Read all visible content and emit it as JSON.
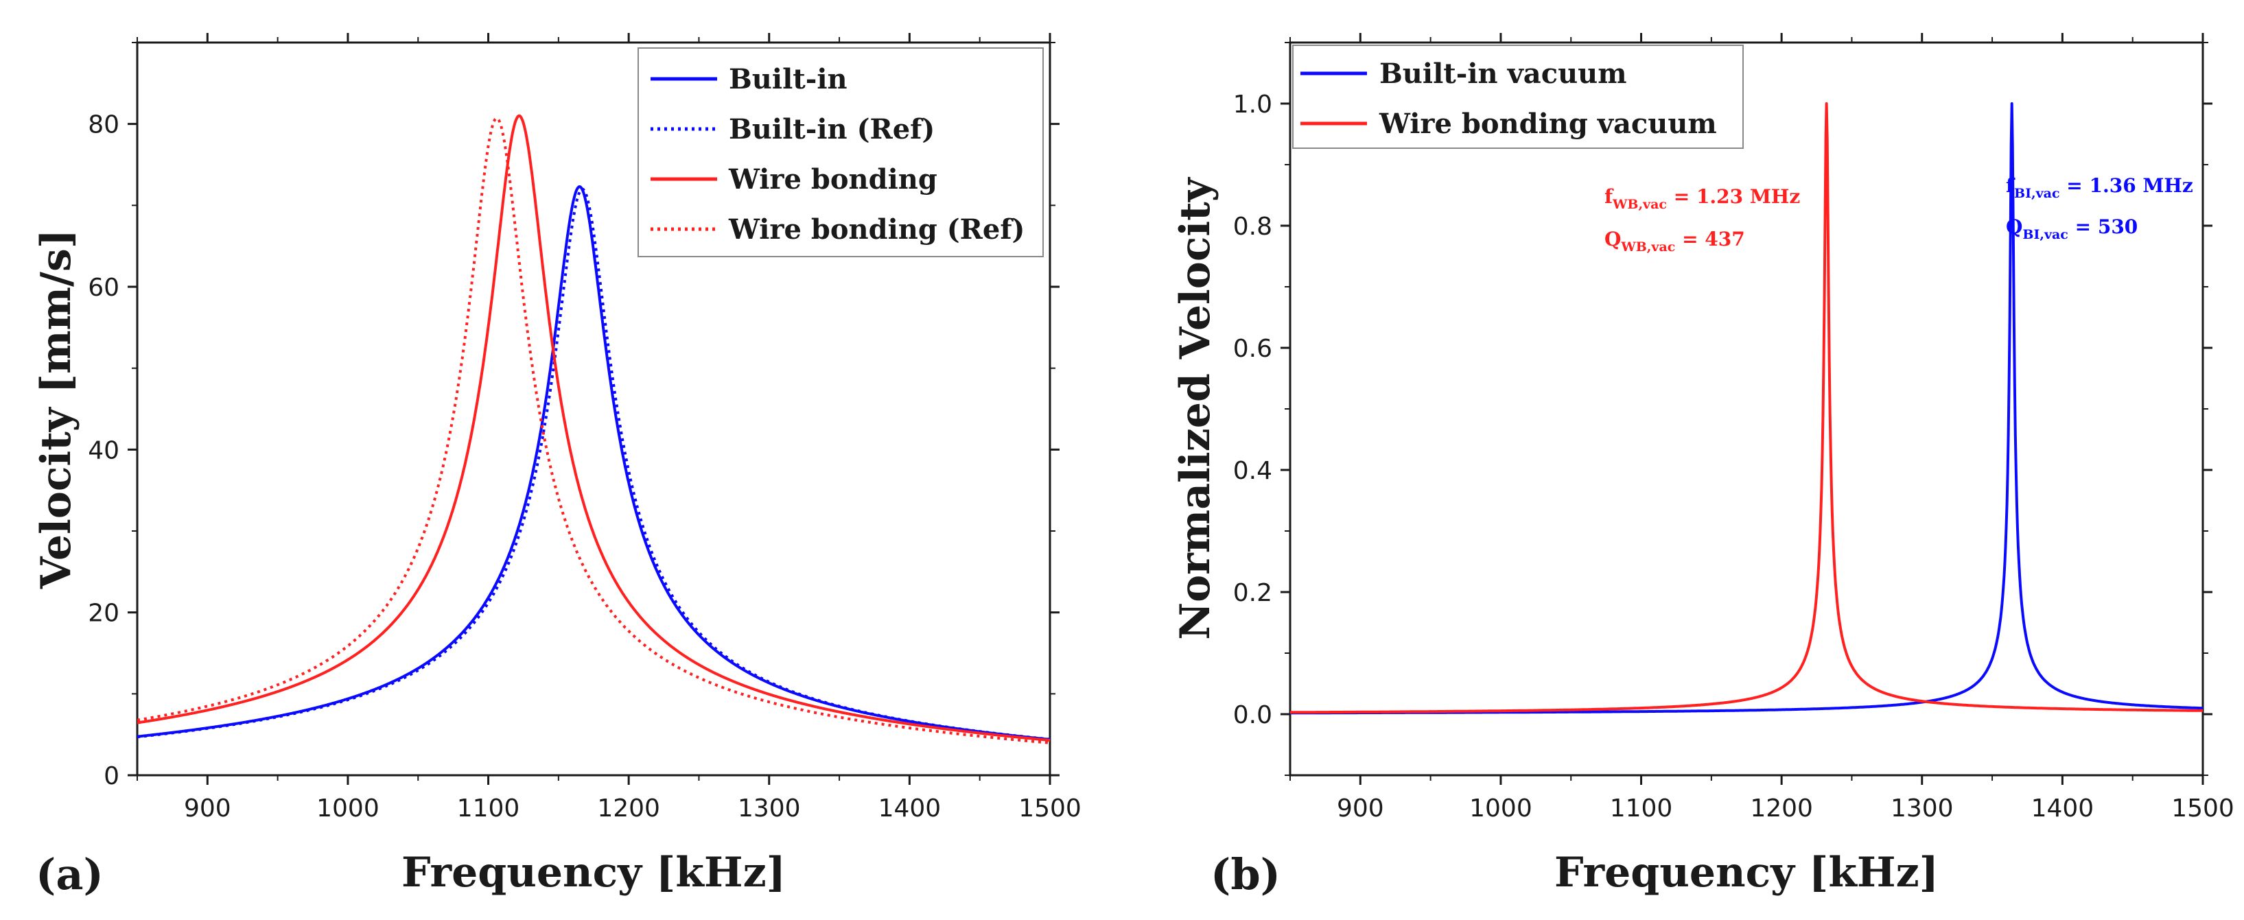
{
  "colors": {
    "blue": "#0a0aff",
    "red": "#ff2020",
    "axis": "#1a1a1a"
  },
  "chart_data": [
    {
      "panel": "(a)",
      "type": "line",
      "xlabel": "Frequency [kHz]",
      "ylabel": "Velocity [mm/s]",
      "xlim": [
        850,
        1500
      ],
      "ylim": [
        0,
        90
      ],
      "xticks": [
        900,
        1000,
        1100,
        1200,
        1300,
        1400,
        1500
      ],
      "yticks": [
        0,
        20,
        40,
        60,
        80
      ],
      "legend_position": "top-right",
      "series": [
        {
          "name": "Built-in",
          "color": "#0a0aff",
          "dash": "solid",
          "model": {
            "f0": 1165,
            "peak": 72.3,
            "q": 30,
            "floor": 2.0
          }
        },
        {
          "name": "Built-in (Ref)",
          "color": "#0a0aff",
          "dash": "dot",
          "model": {
            "f0": 1167,
            "peak": 72.0,
            "q": 30,
            "floor": 2.0
          }
        },
        {
          "name": "Wire bonding",
          "color": "#ff2020",
          "dash": "solid",
          "model": {
            "f0": 1122,
            "peak": 81.0,
            "q": 28,
            "floor": 2.0
          }
        },
        {
          "name": "Wire bonding (Ref)",
          "color": "#ff2020",
          "dash": "dot",
          "model": {
            "f0": 1106,
            "peak": 80.7,
            "q": 28,
            "floor": 2.0
          }
        }
      ]
    },
    {
      "panel": "(b)",
      "type": "line",
      "xlabel": "Frequency [kHz]",
      "ylabel": "Normalized Velocity",
      "xlim": [
        850,
        1500
      ],
      "ylim": [
        -0.1,
        1.1
      ],
      "xticks": [
        900,
        1000,
        1100,
        1200,
        1300,
        1400,
        1500
      ],
      "yticks": [
        0.0,
        0.2,
        0.4,
        0.6,
        0.8,
        1.0
      ],
      "ytick_labels": [
        "0.0",
        "0.2",
        "0.4",
        "0.6",
        "0.8",
        "1.0"
      ],
      "legend_position": "top-left",
      "series": [
        {
          "name": "Built-in vacuum",
          "color": "#0a0aff",
          "dash": "solid",
          "model": {
            "f0": 1364,
            "peak": 1.0,
            "q": 530
          }
        },
        {
          "name": "Wire bonding vacuum",
          "color": "#ff2020",
          "dash": "solid",
          "model": {
            "f0": 1232,
            "peak": 1.0,
            "q": 437
          }
        }
      ],
      "annotations": [
        {
          "color": "#ff2020",
          "f_main": "f",
          "f_sub": "WB,vac",
          "f_value": " = 1.23 MHz",
          "q_main": "Q",
          "q_sub": "WB,vac",
          "q_value": " = 437"
        },
        {
          "color": "#0a0aff",
          "f_main": "f",
          "f_sub": "BI,vac",
          "f_value": " = 1.36 MHz",
          "q_main": "Q",
          "q_sub": "BI,vac",
          "q_value": " = 530"
        }
      ]
    }
  ]
}
